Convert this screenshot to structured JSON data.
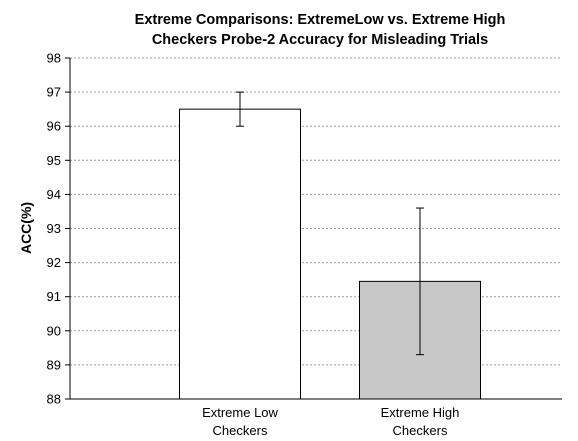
{
  "chart_data": {
    "type": "bar",
    "title": [
      "Extreme Comparisons: ExtremeLow vs. Extreme High",
      "Checkers Probe-2 Accuracy for Misleading Trials"
    ],
    "ylabel": "ACC(%)",
    "xlabel": "",
    "ylim": [
      88,
      98
    ],
    "yticks": [
      88,
      89,
      90,
      91,
      92,
      93,
      94,
      95,
      96,
      97,
      98
    ],
    "grid": true,
    "categories": [
      [
        "Extreme Low",
        "Checkers"
      ],
      [
        "Extreme High",
        "Checkers"
      ]
    ],
    "values": [
      96.5,
      91.45
    ],
    "error_low": [
      96.0,
      89.3
    ],
    "error_high": [
      97.0,
      93.6
    ],
    "colors": [
      "#ffffff",
      "#c8c8c8"
    ]
  }
}
